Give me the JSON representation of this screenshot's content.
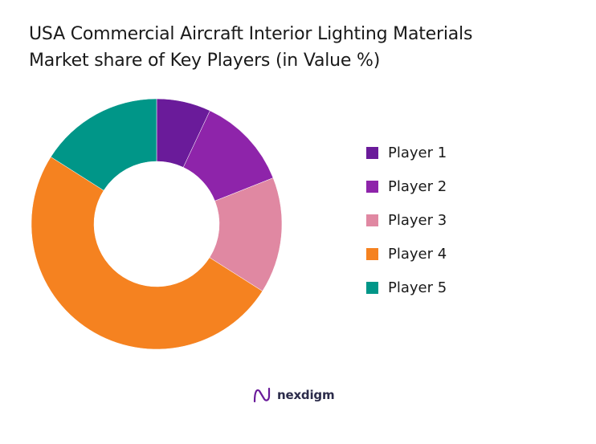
{
  "title": {
    "line1": "USA Commercial Aircraft Interior Lighting Materials",
    "line2": "Market share of Key Players (in Value %)"
  },
  "chart_data": {
    "type": "pie",
    "variant": "donut",
    "categories": [
      "Player 1",
      "Player 2",
      "Player 3",
      "Player 4",
      "Player 5"
    ],
    "values": [
      7,
      12,
      15,
      50,
      16
    ],
    "unit": "%",
    "colors": [
      "#6a1b9a",
      "#8e24aa",
      "#e088a2",
      "#f58220",
      "#009688"
    ],
    "legend_position": "right"
  },
  "brand": {
    "name": "nexdigm",
    "color": "#2b2b4a",
    "accent": "#6a1b9a"
  }
}
